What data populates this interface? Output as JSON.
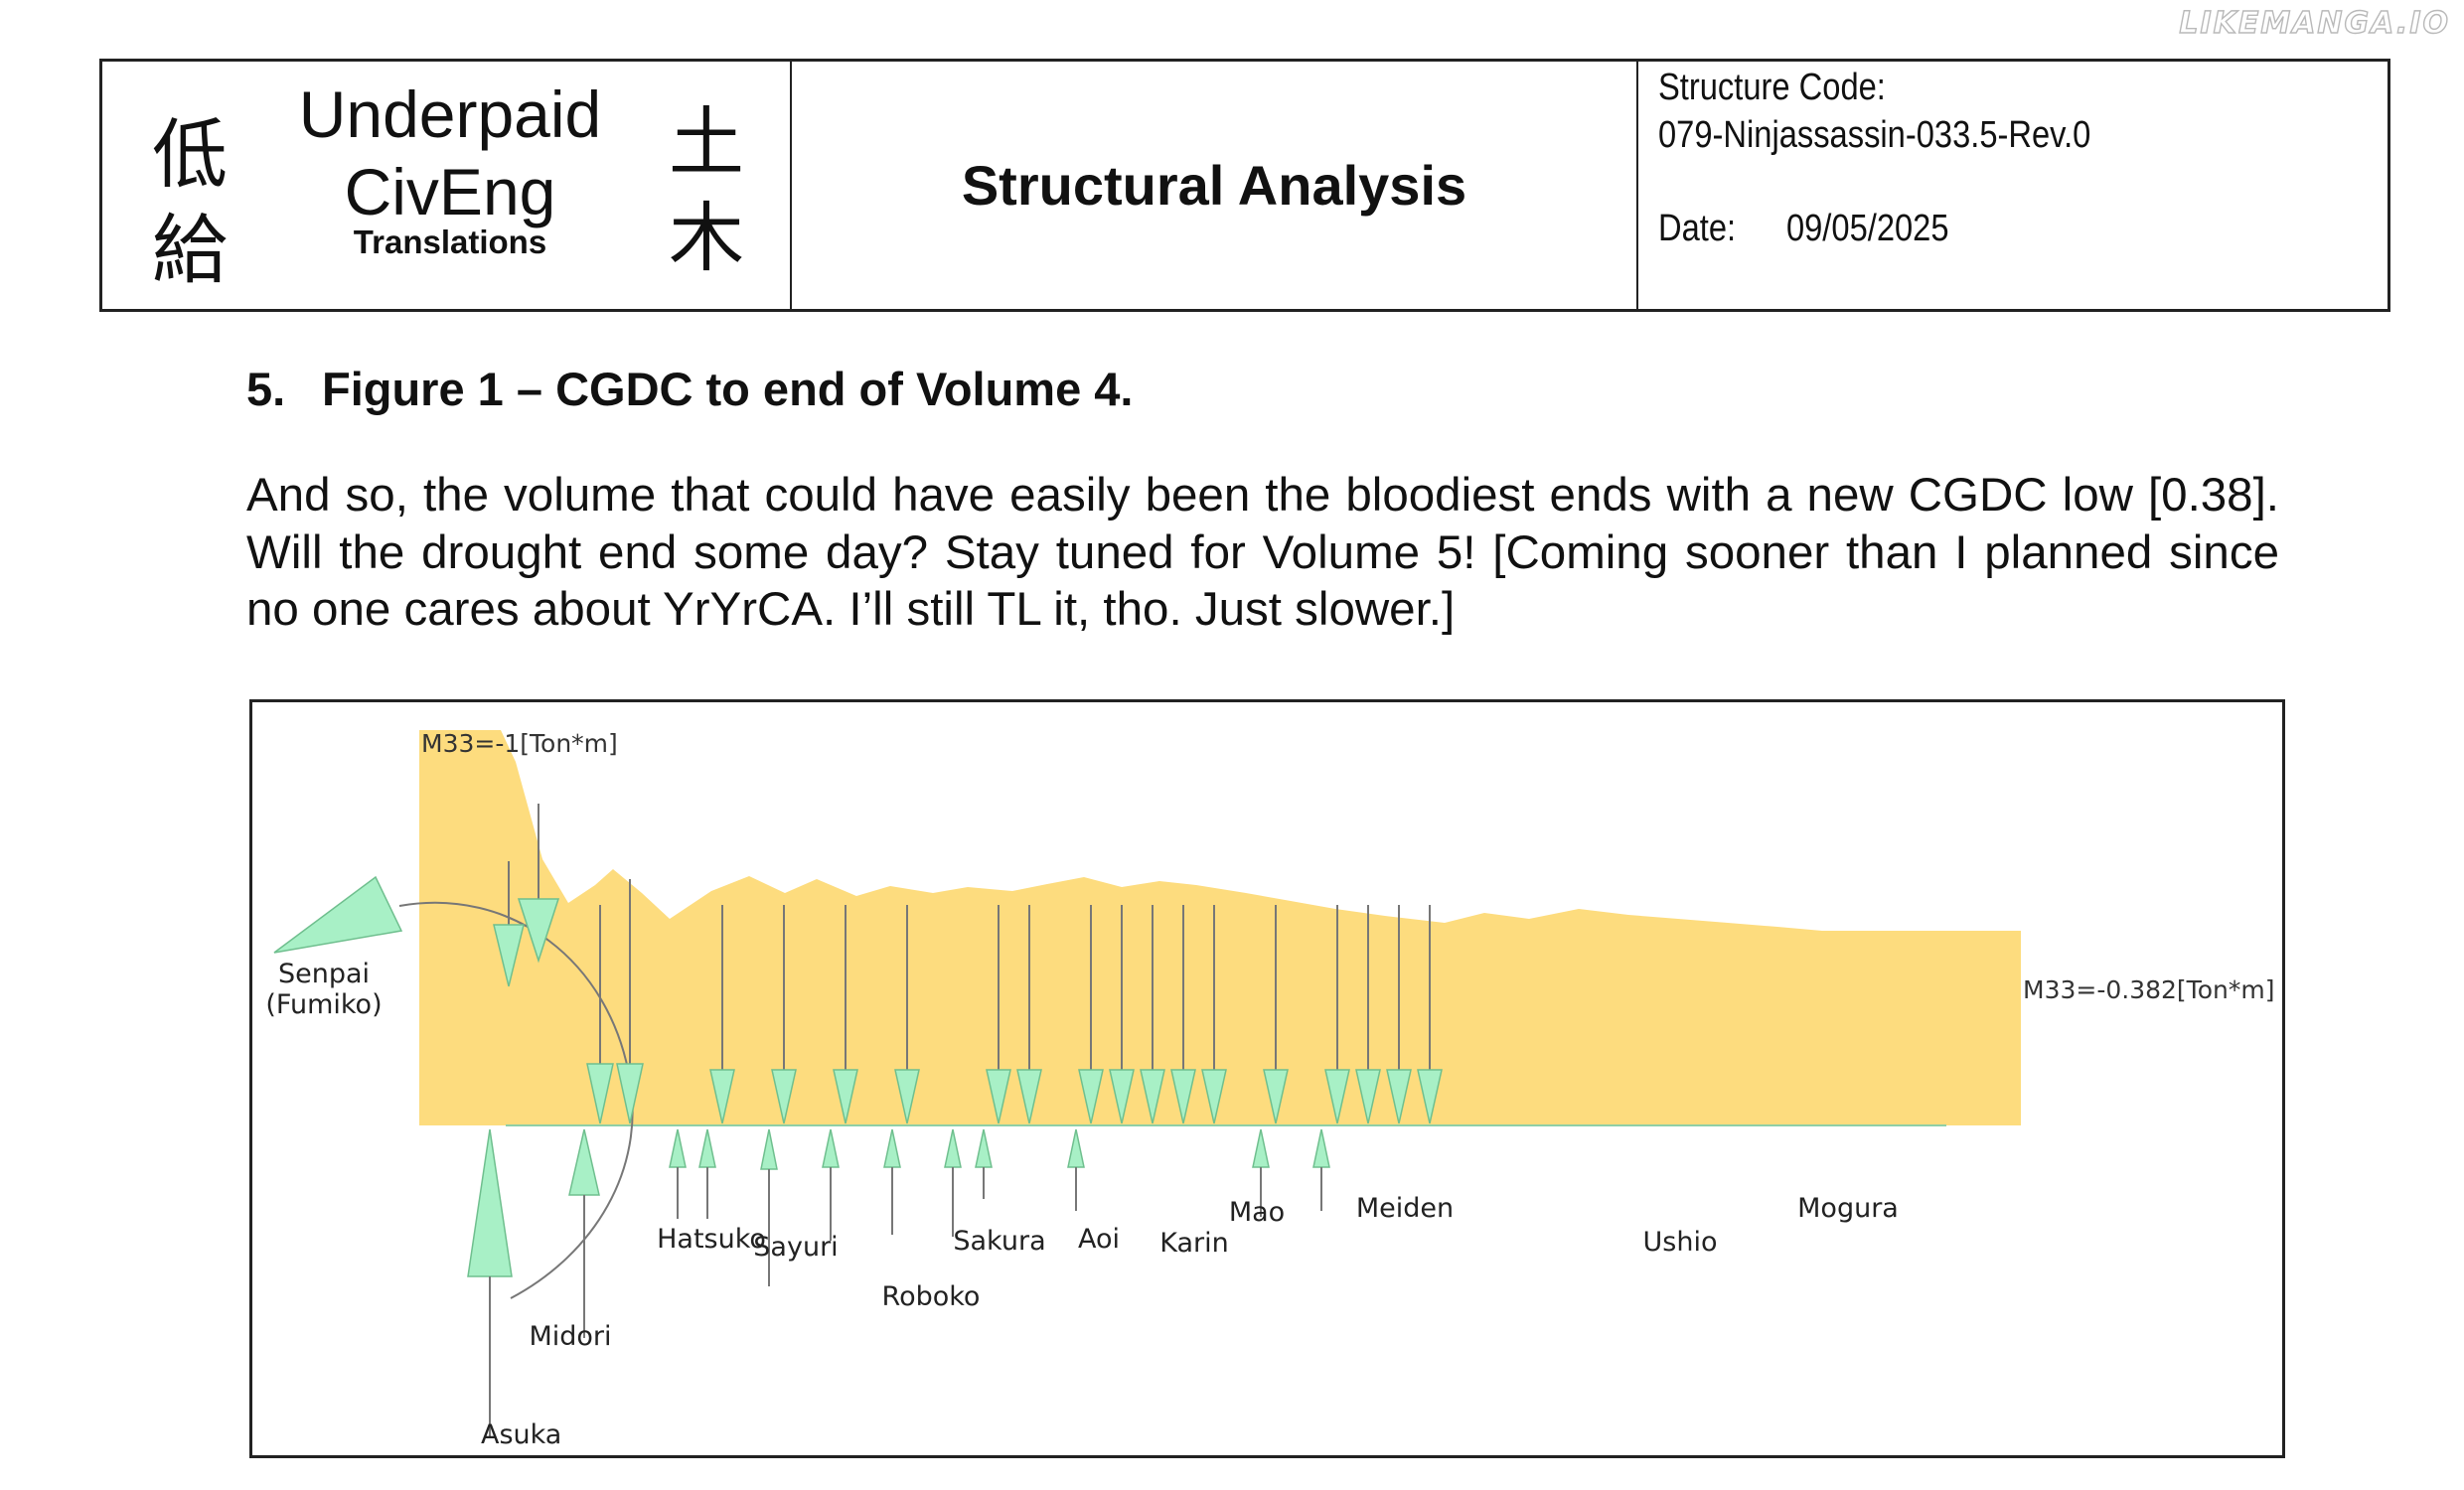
{
  "watermark": "LIKEMANGA.IO",
  "header": {
    "kanji_left": [
      "低",
      "給"
    ],
    "kanji_right": [
      "土",
      "木"
    ],
    "logo_line1": "Underpaid",
    "logo_line2": "CivEng",
    "logo_line3": "Translations",
    "title": "Structural Analysis",
    "structure_code_label": "Structure Code:",
    "structure_code": "079-Ninjassassin-033.5-Rev.0",
    "date_label": "Date:",
    "date": "09/05/2025"
  },
  "section": {
    "number": "5.",
    "heading": "Figure 1 – CGDC to end of Volume 4.",
    "paragraph": "And so, the volume that could have easily been the bloodiest ends with a new CGDC low [0.38]. Will the drought end some day? Stay tuned for Volume 5! [Coming sooner than I planned since no one cares about YrYrCA. I’ll still TL it, tho. Just slower.]"
  },
  "figure": {
    "start_label": "M33=-1[Ton*m]",
    "end_label": "M33=-0.382[Ton*m]",
    "start_moment": -1,
    "end_moment": -0.382,
    "fill_color": "#fddc7e",
    "arrow_color": "#a8f0c6",
    "senpai_label": [
      "Senpai",
      "(Fumiko)"
    ],
    "characters": [
      {
        "name": "Asuka"
      },
      {
        "name": "Midori"
      },
      {
        "name": "Hatsuko"
      },
      {
        "name": "Sayuri"
      },
      {
        "name": "Roboko"
      },
      {
        "name": "Sakura"
      },
      {
        "name": "Aoi"
      },
      {
        "name": "Karin"
      },
      {
        "name": "Mao"
      },
      {
        "name": "Meiden"
      },
      {
        "name": "Ushio"
      },
      {
        "name": "Mogura"
      }
    ]
  }
}
